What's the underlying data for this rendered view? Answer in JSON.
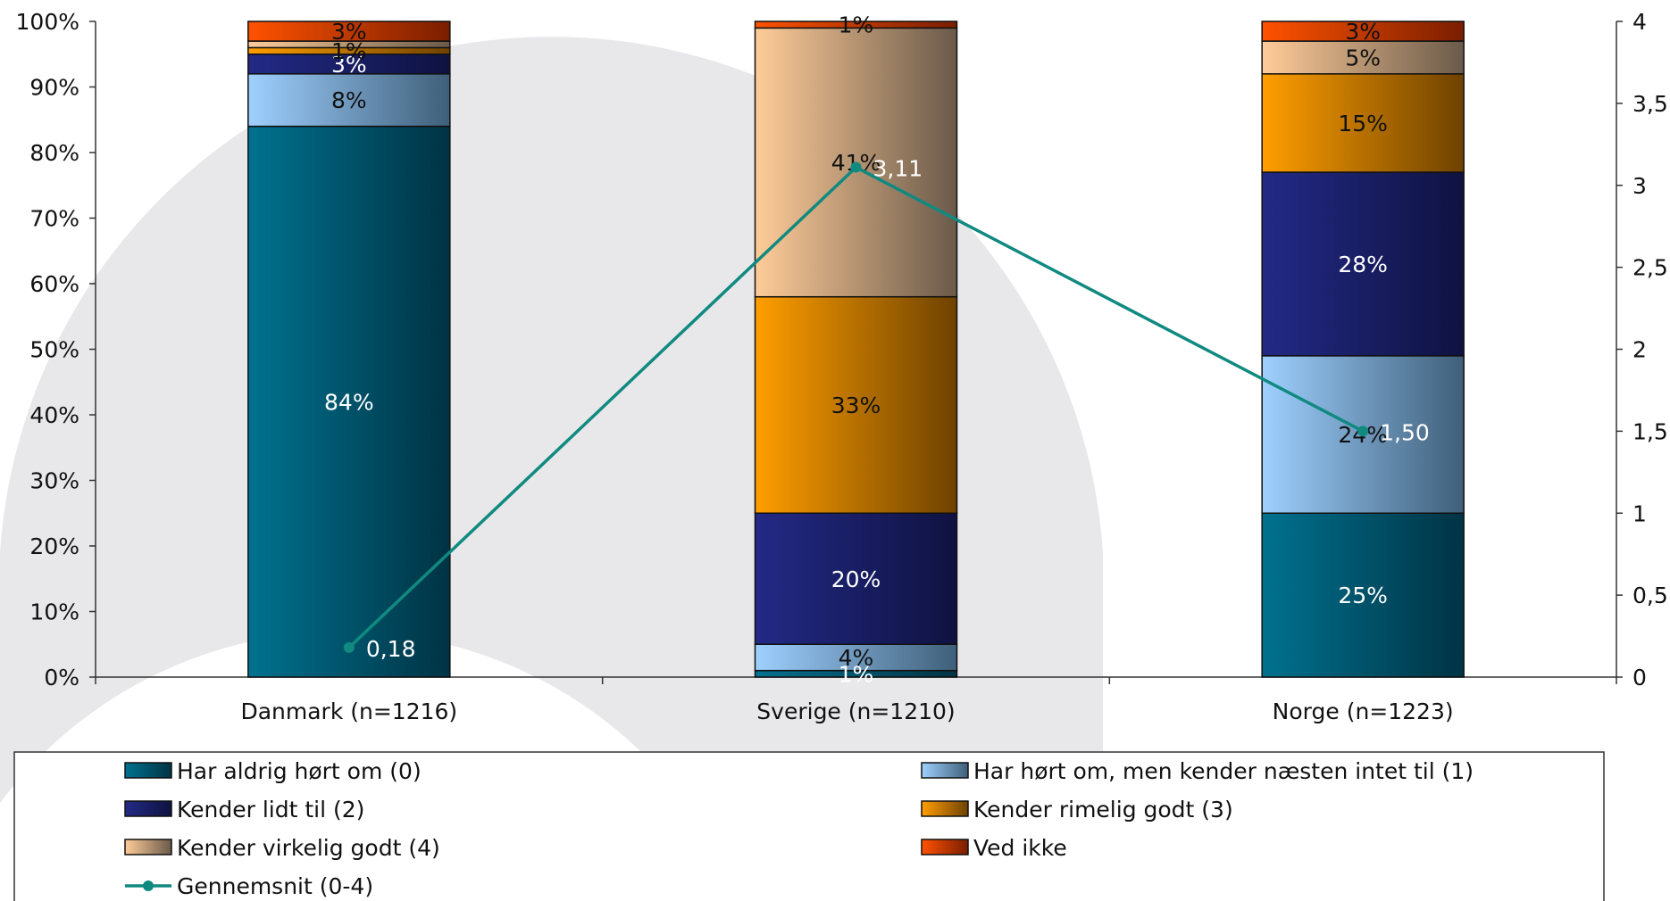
{
  "chart_data": {
    "type": "bar",
    "stacked": true,
    "categories": [
      "Danmark (n=1216)",
      "Sverige (n=1210)",
      "Norge (n=1223)"
    ],
    "series": [
      {
        "name": "Har aldrig hørt om (0)",
        "values": [
          84,
          1,
          25
        ],
        "labels": [
          "84%",
          "1%",
          "25%"
        ],
        "color_start": "#00728f",
        "color_end": "#003344",
        "label_color": "#ffffff"
      },
      {
        "name": "Har hørt om, men kender næsten intet til (1)",
        "values": [
          8,
          4,
          24
        ],
        "labels": [
          "8%",
          "4%",
          "24%"
        ],
        "color_start": "#9fd0ff",
        "color_end": "#3f5f79",
        "label_color": "#111111"
      },
      {
        "name": "Kender lidt til (2)",
        "values": [
          3,
          20,
          28
        ],
        "labels": [
          "3%",
          "20%",
          "28%"
        ],
        "color_start": "#232a86",
        "color_end": "#0f1240",
        "label_color": "#ffffff"
      },
      {
        "name": "Kender rimelig godt (3)",
        "values": [
          1,
          33,
          15
        ],
        "labels": [
          "1%",
          "33%",
          "15%"
        ],
        "color_start": "#ff9e00",
        "color_end": "#6e4200",
        "label_color": "#111111"
      },
      {
        "name": "Kender virkelig godt (4)",
        "values": [
          1,
          41,
          5
        ],
        "labels": [
          "",
          "41%",
          "5%"
        ],
        "color_start": "#ffcc99",
        "color_end": "#6a5a4a",
        "label_color": "#111111"
      },
      {
        "name": "Ved ikke",
        "values": [
          3,
          1,
          3
        ],
        "labels": [
          "3%",
          "1%",
          "3%"
        ],
        "color_start": "#ff5200",
        "color_end": "#7a1e00",
        "label_color": "#111111"
      }
    ],
    "line_series": {
      "name": "Gennemsnit (0-4)",
      "values": [
        0.18,
        3.11,
        1.5
      ],
      "labels": [
        "0,18",
        "3,11",
        "1,50"
      ],
      "color": "#108a80",
      "axis": "right"
    },
    "y_left": {
      "min": 0,
      "max": 100,
      "ticks": [
        "0%",
        "10%",
        "20%",
        "30%",
        "40%",
        "50%",
        "60%",
        "70%",
        "80%",
        "90%",
        "100%"
      ]
    },
    "y_right": {
      "min": 0,
      "max": 4,
      "ticks": [
        "0",
        "0,5",
        "1",
        "1,5",
        "2",
        "2,5",
        "3",
        "3,5",
        "4"
      ]
    },
    "legend_position": "bottom",
    "grid": false
  }
}
